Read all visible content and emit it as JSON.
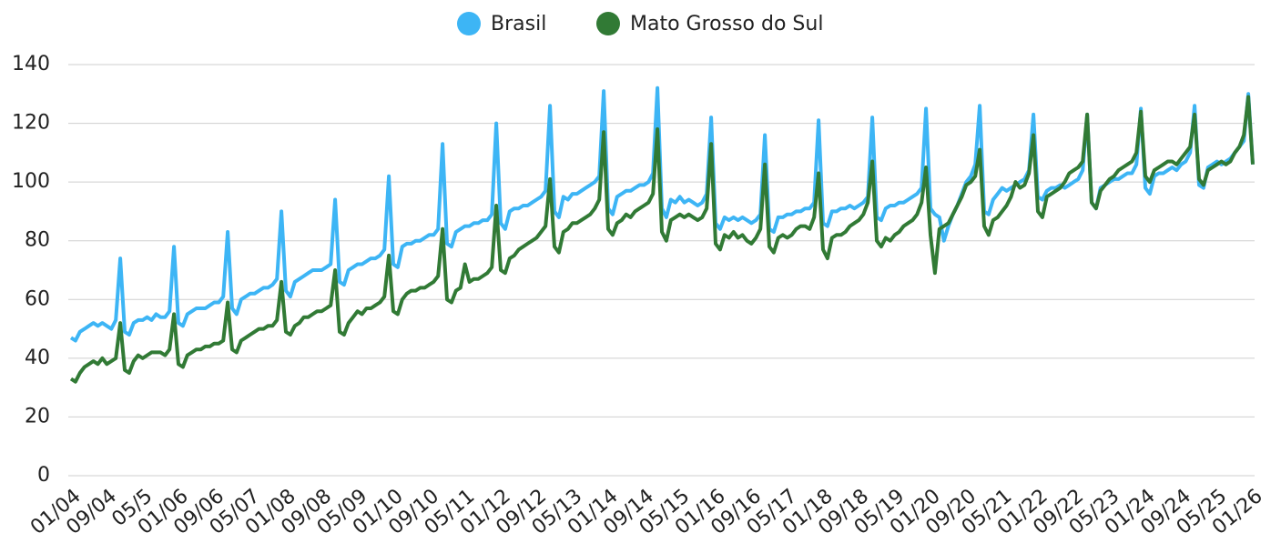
{
  "chart_data": {
    "type": "line",
    "categories": [
      "01/04",
      null,
      null,
      null,
      null,
      null,
      null,
      null,
      "09/04",
      null,
      null,
      null,
      null,
      null,
      null,
      null,
      "05/5",
      null,
      null,
      null,
      null,
      null,
      null,
      null,
      "01/06",
      null,
      null,
      null,
      null,
      null,
      null,
      null,
      "09/06",
      null,
      null,
      null,
      null,
      null,
      null,
      null,
      "05/07",
      null,
      null,
      null,
      null,
      null,
      null,
      null,
      "01/08",
      null,
      null,
      null,
      null,
      null,
      null,
      null,
      "09/08",
      null,
      null,
      null,
      null,
      null,
      null,
      null,
      "05/09",
      null,
      null,
      null,
      null,
      null,
      null,
      null,
      "01/10",
      null,
      null,
      null,
      null,
      null,
      null,
      null,
      "09/10",
      null,
      null,
      null,
      null,
      null,
      null,
      null,
      "05/11",
      null,
      null,
      null,
      null,
      null,
      null,
      null,
      "01/12",
      null,
      null,
      null,
      null,
      null,
      null,
      null,
      "09/12",
      null,
      null,
      null,
      null,
      null,
      null,
      null,
      "05/13",
      null,
      null,
      null,
      null,
      null,
      null,
      null,
      "01/14",
      null,
      null,
      null,
      null,
      null,
      null,
      null,
      "09/14",
      null,
      null,
      null,
      null,
      null,
      null,
      null,
      "05/15",
      null,
      null,
      null,
      null,
      null,
      null,
      null,
      "01/16",
      null,
      null,
      null,
      null,
      null,
      null,
      null,
      "09/16",
      null,
      null,
      null,
      null,
      null,
      null,
      null,
      "05/17",
      null,
      null,
      null,
      null,
      null,
      null,
      null,
      "01/18",
      null,
      null,
      null,
      null,
      null,
      null,
      null,
      "09/18",
      null,
      null,
      null,
      null,
      null,
      null,
      null,
      "05/19",
      null,
      null,
      null,
      null,
      null,
      null,
      null,
      "01/20",
      null,
      null,
      null,
      null,
      null,
      null,
      null,
      "09/20",
      null,
      null,
      null,
      null,
      null,
      null,
      null,
      "05/21",
      null,
      null,
      null,
      null,
      null,
      null,
      null,
      "01/22",
      null,
      null,
      null,
      null,
      null,
      null,
      null,
      "09/22",
      null,
      null,
      null,
      null,
      null,
      null,
      null,
      "05/23",
      null,
      null,
      null,
      null,
      null,
      null,
      null,
      "01/24",
      null,
      null,
      null,
      null,
      null,
      null,
      null,
      "09/24",
      null,
      null,
      null,
      null,
      null,
      null,
      null,
      "05/25",
      null,
      null,
      null,
      null,
      null,
      null,
      null,
      "01/26"
    ],
    "series": [
      {
        "name": "Brasil",
        "color": "#3db5f5",
        "values": [
          47,
          46,
          49,
          50,
          51,
          52,
          51,
          52,
          51,
          50,
          53,
          74,
          49,
          48,
          52,
          53,
          53,
          54,
          53,
          55,
          54,
          54,
          56,
          78,
          52,
          51,
          55,
          56,
          57,
          57,
          57,
          58,
          59,
          59,
          61,
          83,
          57,
          55,
          60,
          61,
          62,
          62,
          63,
          64,
          64,
          65,
          67,
          90,
          63,
          61,
          66,
          67,
          68,
          69,
          70,
          70,
          70,
          71,
          72,
          94,
          66,
          65,
          70,
          71,
          72,
          72,
          73,
          74,
          74,
          75,
          77,
          102,
          72,
          71,
          78,
          79,
          79,
          80,
          80,
          81,
          82,
          82,
          84,
          113,
          79,
          78,
          83,
          84,
          85,
          85,
          86,
          86,
          87,
          87,
          89,
          120,
          86,
          84,
          90,
          91,
          91,
          92,
          92,
          93,
          94,
          95,
          97,
          126,
          90,
          88,
          95,
          94,
          96,
          96,
          97,
          98,
          99,
          100,
          102,
          131,
          91,
          89,
          95,
          96,
          97,
          97,
          98,
          99,
          99,
          100,
          103,
          132,
          91,
          88,
          94,
          93,
          95,
          93,
          94,
          93,
          92,
          93,
          96,
          122,
          86,
          84,
          88,
          87,
          88,
          87,
          88,
          87,
          86,
          87,
          89,
          116,
          84,
          83,
          88,
          88,
          89,
          89,
          90,
          90,
          91,
          91,
          93,
          121,
          86,
          85,
          90,
          90,
          91,
          91,
          92,
          91,
          92,
          93,
          95,
          122,
          88,
          87,
          91,
          92,
          92,
          93,
          93,
          94,
          95,
          96,
          98,
          125,
          91,
          89,
          88,
          80,
          85,
          89,
          92,
          96,
          100,
          102,
          106,
          126,
          90,
          89,
          94,
          96,
          98,
          97,
          98,
          99,
          100,
          101,
          104,
          123,
          95,
          94,
          97,
          98,
          98,
          99,
          98,
          99,
          100,
          101,
          104,
          123,
          93,
          91,
          98,
          99,
          100,
          101,
          101,
          102,
          103,
          103,
          106,
          125,
          98,
          96,
          102,
          103,
          103,
          104,
          105,
          104,
          106,
          107,
          110,
          126,
          99,
          98,
          105,
          106,
          107,
          106,
          107,
          108,
          110,
          112,
          114,
          130,
          106
        ]
      },
      {
        "name": "Mato Grosso do Sul",
        "color": "#317a35",
        "values": [
          33,
          32,
          35,
          37,
          38,
          39,
          38,
          40,
          38,
          39,
          40,
          52,
          36,
          35,
          39,
          41,
          40,
          41,
          42,
          42,
          42,
          41,
          43,
          55,
          38,
          37,
          41,
          42,
          43,
          43,
          44,
          44,
          45,
          45,
          46,
          59,
          43,
          42,
          46,
          47,
          48,
          49,
          50,
          50,
          51,
          51,
          53,
          66,
          49,
          48,
          51,
          52,
          54,
          54,
          55,
          56,
          56,
          57,
          58,
          70,
          49,
          48,
          52,
          54,
          56,
          55,
          57,
          57,
          58,
          59,
          61,
          75,
          56,
          55,
          60,
          62,
          63,
          63,
          64,
          64,
          65,
          66,
          68,
          84,
          60,
          59,
          63,
          64,
          72,
          66,
          67,
          67,
          68,
          69,
          71,
          92,
          70,
          69,
          74,
          75,
          77,
          78,
          79,
          80,
          81,
          83,
          85,
          101,
          78,
          76,
          83,
          84,
          86,
          86,
          87,
          88,
          89,
          91,
          94,
          117,
          84,
          82,
          86,
          87,
          89,
          88,
          90,
          91,
          92,
          93,
          96,
          118,
          83,
          80,
          87,
          88,
          89,
          88,
          89,
          88,
          87,
          88,
          91,
          113,
          79,
          77,
          82,
          81,
          83,
          81,
          82,
          80,
          79,
          81,
          84,
          106,
          78,
          76,
          81,
          82,
          81,
          82,
          84,
          85,
          85,
          84,
          88,
          103,
          77,
          74,
          81,
          82,
          82,
          83,
          85,
          86,
          87,
          89,
          93,
          107,
          80,
          78,
          81,
          80,
          82,
          83,
          85,
          86,
          87,
          89,
          93,
          105,
          82,
          69,
          84,
          85,
          86,
          89,
          92,
          95,
          99,
          100,
          102,
          111,
          85,
          82,
          87,
          88,
          90,
          92,
          95,
          100,
          98,
          99,
          103,
          116,
          90,
          88,
          95,
          96,
          97,
          98,
          100,
          103,
          104,
          105,
          107,
          123,
          93,
          91,
          97,
          99,
          101,
          102,
          104,
          105,
          106,
          107,
          110,
          124,
          102,
          100,
          104,
          105,
          106,
          107,
          107,
          106,
          108,
          110,
          112,
          123,
          101,
          99,
          104,
          105,
          106,
          107,
          106,
          107,
          110,
          112,
          116,
          129,
          106
        ]
      }
    ],
    "ylim": [
      0,
      140
    ],
    "yticks": [
      0,
      20,
      40,
      60,
      80,
      100,
      120,
      140
    ],
    "grid": true,
    "legend": "top"
  }
}
